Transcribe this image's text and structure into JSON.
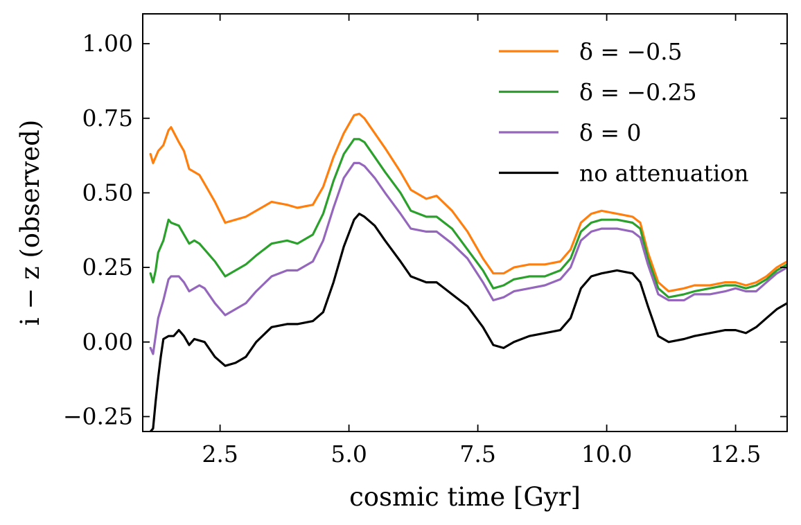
{
  "chart_data": {
    "type": "line",
    "title": "",
    "xlabel": "cosmic time [Gyr]",
    "ylabel": "i − z (observed)",
    "xlim": [
      1.0,
      13.5
    ],
    "ylim": [
      -0.3,
      1.1
    ],
    "xticks": [
      2.5,
      5.0,
      7.5,
      10.0,
      12.5
    ],
    "xtick_labels": [
      "2.5",
      "5.0",
      "7.5",
      "10.0",
      "12.5"
    ],
    "yticks": [
      -0.25,
      0.0,
      0.25,
      0.5,
      0.75,
      1.0
    ],
    "ytick_labels": [
      "−0.25",
      "0.00",
      "0.25",
      "0.50",
      "0.75",
      "1.00"
    ],
    "grid": false,
    "legend_position": "top-right",
    "series": [
      {
        "name": "δ = −0.5",
        "color": "#ff7f0e",
        "x": [
          1.15,
          1.2,
          1.25,
          1.3,
          1.4,
          1.5,
          1.55,
          1.7,
          1.8,
          1.9,
          2.0,
          2.1,
          2.2,
          2.4,
          2.6,
          2.8,
          3.0,
          3.2,
          3.5,
          3.8,
          4.0,
          4.3,
          4.5,
          4.7,
          4.9,
          5.1,
          5.2,
          5.3,
          5.5,
          5.7,
          6.0,
          6.2,
          6.5,
          6.7,
          7.0,
          7.3,
          7.6,
          7.8,
          8.0,
          8.2,
          8.5,
          8.8,
          9.1,
          9.3,
          9.5,
          9.7,
          9.9,
          10.2,
          10.5,
          10.65,
          10.8,
          11.0,
          11.2,
          11.5,
          11.7,
          12.0,
          12.3,
          12.5,
          12.7,
          12.9,
          13.1,
          13.3,
          13.5
        ],
        "values": [
          0.63,
          0.6,
          0.62,
          0.64,
          0.66,
          0.71,
          0.72,
          0.67,
          0.64,
          0.58,
          0.57,
          0.56,
          0.53,
          0.47,
          0.4,
          0.41,
          0.42,
          0.44,
          0.47,
          0.46,
          0.45,
          0.46,
          0.52,
          0.62,
          0.7,
          0.76,
          0.765,
          0.75,
          0.7,
          0.65,
          0.57,
          0.51,
          0.48,
          0.49,
          0.44,
          0.37,
          0.28,
          0.23,
          0.23,
          0.25,
          0.26,
          0.26,
          0.27,
          0.31,
          0.4,
          0.43,
          0.44,
          0.43,
          0.42,
          0.4,
          0.3,
          0.2,
          0.17,
          0.18,
          0.19,
          0.19,
          0.2,
          0.2,
          0.19,
          0.2,
          0.22,
          0.25,
          0.27
        ]
      },
      {
        "name": "δ = −0.25",
        "color": "#2ca02c",
        "x": [
          1.15,
          1.2,
          1.25,
          1.3,
          1.4,
          1.5,
          1.55,
          1.7,
          1.8,
          1.9,
          2.0,
          2.1,
          2.2,
          2.4,
          2.6,
          2.8,
          3.0,
          3.2,
          3.5,
          3.8,
          4.0,
          4.3,
          4.5,
          4.7,
          4.9,
          5.1,
          5.2,
          5.3,
          5.5,
          5.7,
          6.0,
          6.2,
          6.5,
          6.7,
          7.0,
          7.3,
          7.6,
          7.8,
          8.0,
          8.2,
          8.5,
          8.8,
          9.1,
          9.3,
          9.5,
          9.7,
          9.9,
          10.2,
          10.5,
          10.65,
          10.8,
          11.0,
          11.2,
          11.5,
          11.7,
          12.0,
          12.3,
          12.5,
          12.7,
          12.9,
          13.1,
          13.3,
          13.5
        ],
        "values": [
          0.23,
          0.2,
          0.24,
          0.3,
          0.34,
          0.41,
          0.4,
          0.39,
          0.36,
          0.33,
          0.34,
          0.33,
          0.31,
          0.27,
          0.22,
          0.24,
          0.26,
          0.29,
          0.33,
          0.34,
          0.33,
          0.36,
          0.43,
          0.54,
          0.63,
          0.68,
          0.68,
          0.67,
          0.62,
          0.57,
          0.5,
          0.44,
          0.42,
          0.42,
          0.38,
          0.31,
          0.24,
          0.18,
          0.19,
          0.21,
          0.22,
          0.22,
          0.24,
          0.28,
          0.37,
          0.4,
          0.41,
          0.41,
          0.4,
          0.38,
          0.28,
          0.18,
          0.15,
          0.16,
          0.17,
          0.18,
          0.19,
          0.19,
          0.18,
          0.19,
          0.21,
          0.24,
          0.26
        ]
      },
      {
        "name": "δ = 0",
        "color": "#9467bd",
        "x": [
          1.15,
          1.2,
          1.25,
          1.3,
          1.4,
          1.5,
          1.55,
          1.7,
          1.8,
          1.9,
          2.0,
          2.1,
          2.2,
          2.4,
          2.6,
          2.8,
          3.0,
          3.2,
          3.5,
          3.8,
          4.0,
          4.3,
          4.5,
          4.7,
          4.9,
          5.1,
          5.2,
          5.3,
          5.5,
          5.7,
          6.0,
          6.2,
          6.5,
          6.7,
          7.0,
          7.3,
          7.6,
          7.8,
          8.0,
          8.2,
          8.5,
          8.8,
          9.1,
          9.3,
          9.5,
          9.7,
          9.9,
          10.2,
          10.5,
          10.65,
          10.8,
          11.0,
          11.2,
          11.5,
          11.7,
          12.0,
          12.3,
          12.5,
          12.7,
          12.9,
          13.1,
          13.3,
          13.5
        ],
        "values": [
          -0.02,
          -0.04,
          0.02,
          0.08,
          0.14,
          0.21,
          0.22,
          0.22,
          0.2,
          0.17,
          0.18,
          0.19,
          0.18,
          0.13,
          0.09,
          0.11,
          0.13,
          0.17,
          0.22,
          0.24,
          0.24,
          0.27,
          0.34,
          0.45,
          0.55,
          0.6,
          0.6,
          0.59,
          0.55,
          0.5,
          0.43,
          0.38,
          0.37,
          0.37,
          0.33,
          0.28,
          0.2,
          0.14,
          0.15,
          0.17,
          0.18,
          0.19,
          0.21,
          0.25,
          0.34,
          0.37,
          0.38,
          0.38,
          0.37,
          0.35,
          0.26,
          0.16,
          0.14,
          0.14,
          0.16,
          0.16,
          0.17,
          0.18,
          0.17,
          0.17,
          0.2,
          0.23,
          0.25
        ]
      },
      {
        "name": "no attenuation",
        "color": "#000000",
        "x": [
          1.15,
          1.2,
          1.25,
          1.3,
          1.35,
          1.4,
          1.5,
          1.6,
          1.7,
          1.8,
          1.9,
          2.0,
          2.2,
          2.4,
          2.6,
          2.8,
          3.0,
          3.2,
          3.5,
          3.8,
          4.0,
          4.3,
          4.5,
          4.7,
          4.9,
          5.1,
          5.2,
          5.3,
          5.5,
          5.7,
          6.0,
          6.2,
          6.5,
          6.7,
          7.0,
          7.3,
          7.6,
          7.8,
          8.0,
          8.2,
          8.5,
          8.8,
          9.1,
          9.3,
          9.5,
          9.7,
          9.9,
          10.2,
          10.5,
          10.65,
          10.8,
          11.0,
          11.2,
          11.5,
          11.7,
          12.0,
          12.3,
          12.5,
          12.7,
          12.9,
          13.1,
          13.3,
          13.5
        ],
        "values": [
          -0.3,
          -0.29,
          -0.2,
          -0.12,
          -0.05,
          0.01,
          0.02,
          0.02,
          0.04,
          0.02,
          -0.01,
          0.01,
          0.0,
          -0.05,
          -0.08,
          -0.07,
          -0.05,
          0.0,
          0.05,
          0.06,
          0.06,
          0.07,
          0.1,
          0.2,
          0.32,
          0.41,
          0.43,
          0.42,
          0.39,
          0.34,
          0.27,
          0.22,
          0.2,
          0.2,
          0.16,
          0.12,
          0.05,
          -0.01,
          -0.02,
          0.0,
          0.02,
          0.03,
          0.04,
          0.08,
          0.18,
          0.22,
          0.23,
          0.24,
          0.23,
          0.2,
          0.12,
          0.02,
          0.0,
          0.01,
          0.02,
          0.03,
          0.04,
          0.04,
          0.03,
          0.05,
          0.08,
          0.11,
          0.13
        ]
      }
    ]
  }
}
